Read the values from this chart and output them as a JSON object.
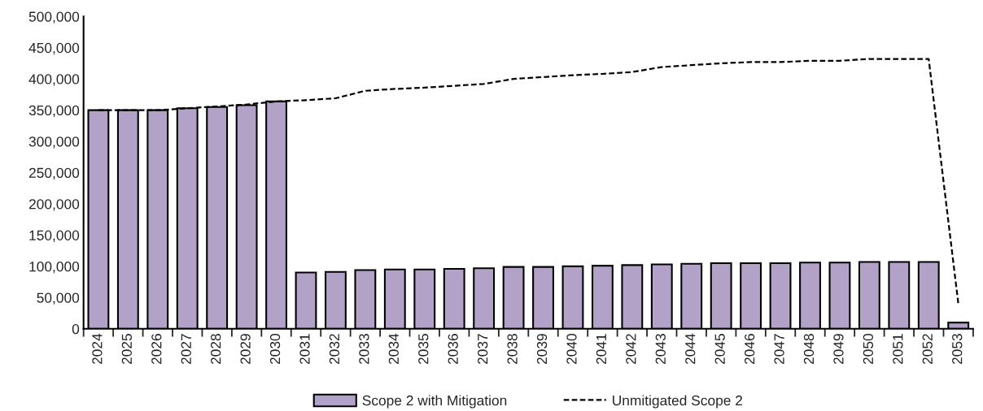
{
  "chart_data": {
    "type": "bar",
    "categories": [
      "2024",
      "2025",
      "2026",
      "2027",
      "2028",
      "2029",
      "2030",
      "2031",
      "2032",
      "2033",
      "2034",
      "2035",
      "2036",
      "2037",
      "2038",
      "2039",
      "2040",
      "2041",
      "2042",
      "2043",
      "2044",
      "2045",
      "2046",
      "2047",
      "2048",
      "2049",
      "2050",
      "2051",
      "2052",
      "2053"
    ],
    "series": [
      {
        "name": "Scope 2 with Mitigation",
        "color": "#b3a2c7",
        "values": [
          350000,
          350000,
          350000,
          353000,
          355000,
          358000,
          364000,
          90000,
          91000,
          94000,
          95000,
          95000,
          96000,
          97000,
          99000,
          99000,
          100000,
          101000,
          102000,
          103000,
          104000,
          105000,
          105000,
          105000,
          106000,
          106000,
          107000,
          107000,
          107000,
          10000
        ]
      },
      {
        "name": "Unmitigated Scope 2",
        "type": "line",
        "color": "#000000",
        "line_style": "dashed",
        "values": [
          350000,
          350000,
          350000,
          353000,
          356000,
          359000,
          364000,
          366000,
          369000,
          381000,
          384000,
          386000,
          389000,
          392000,
          400000,
          403000,
          406000,
          408000,
          411000,
          419000,
          422000,
          425000,
          427000,
          427000,
          429000,
          429000,
          432000,
          432000,
          432000,
          40000
        ]
      }
    ],
    "ylim": [
      0,
      500000
    ],
    "yticks": [
      {
        "value": 0,
        "label": "0"
      },
      {
        "value": 50000,
        "label": "50,000"
      },
      {
        "value": 100000,
        "label": "100,000"
      },
      {
        "value": 150000,
        "label": "150,000"
      },
      {
        "value": 200000,
        "label": "200,000"
      },
      {
        "value": 250000,
        "label": "250,000"
      },
      {
        "value": 300000,
        "label": "300,000"
      },
      {
        "value": 350000,
        "label": "350,000"
      },
      {
        "value": 400000,
        "label": "400,000"
      },
      {
        "value": 450000,
        "label": "450,000"
      },
      {
        "value": 500000,
        "label": "500,000"
      }
    ],
    "grid": false,
    "legend": "bottom"
  }
}
